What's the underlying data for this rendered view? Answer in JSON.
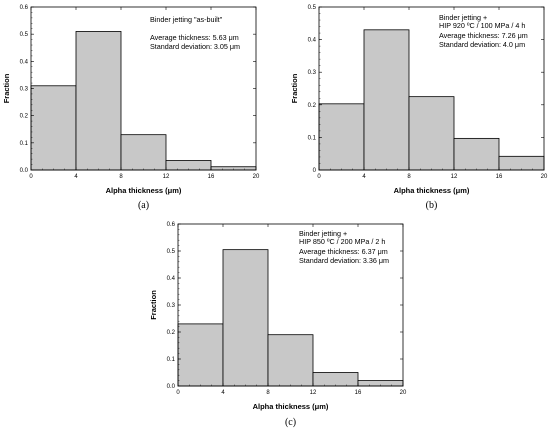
{
  "chart_data": [
    {
      "type": "bar",
      "bin_edges": [
        0,
        4,
        8,
        12,
        16,
        20
      ],
      "values": [
        0.31,
        0.51,
        0.13,
        0.035,
        0.012
      ],
      "xlabel": "Alpha thickness (μm)",
      "ylabel": "Fraction",
      "xlim": [
        0,
        20
      ],
      "ylim": [
        0,
        0.6
      ],
      "xticks": [
        "0",
        "4",
        "8",
        "12",
        "16",
        "20"
      ],
      "yticks": [
        "0.0",
        "0.1",
        "0.2",
        "0.3",
        "0.4",
        "0.5",
        "0.6"
      ],
      "annotations": [
        "Binder jetting \"as-built\"",
        "Average thickness: 5.63 μm",
        "Standard deviation: 3.05 μm"
      ],
      "caption": "(a)",
      "bar_color": "#c8c8c8"
    },
    {
      "type": "bar",
      "bin_edges": [
        0,
        4,
        8,
        12,
        16,
        20
      ],
      "values": [
        0.203,
        0.43,
        0.225,
        0.097,
        0.042
      ],
      "xlabel": "Alpha thickness (μm)",
      "ylabel": "Fraction",
      "xlim": [
        0,
        20
      ],
      "ylim": [
        0,
        0.5
      ],
      "xticks": [
        "0",
        "4",
        "8",
        "12",
        "16",
        "20"
      ],
      "yticks": [
        "0",
        "0.1",
        "0.2",
        "0.3",
        "0.4",
        "0.5"
      ],
      "annotations": [
        "Binder jetting +",
        "HIP 920 ºC / 100 MPa / 4 h",
        "Average thickness: 7.26 μm",
        "Standard deviation: 4.0 μm"
      ],
      "caption": "(b)",
      "bar_color": "#c8c8c8"
    },
    {
      "type": "bar",
      "bin_edges": [
        0,
        4,
        8,
        12,
        16,
        20
      ],
      "values": [
        0.23,
        0.505,
        0.19,
        0.05,
        0.02
      ],
      "xlabel": "Alpha thickness (μm)",
      "ylabel": "Fraction",
      "xlim": [
        0,
        20
      ],
      "ylim": [
        0,
        0.6
      ],
      "xticks": [
        "0",
        "4",
        "8",
        "12",
        "16",
        "20"
      ],
      "yticks": [
        "0.0",
        "0.1",
        "0.2",
        "0.3",
        "0.4",
        "0.5",
        "0.6"
      ],
      "annotations": [
        "Binder jetting +",
        "HIP 850 ºC / 200 MPa / 2 h",
        "Average thickness: 6.37 μm",
        "Standard deviation: 3.36 μm"
      ],
      "caption": "(c)",
      "bar_color": "#c8c8c8"
    }
  ]
}
